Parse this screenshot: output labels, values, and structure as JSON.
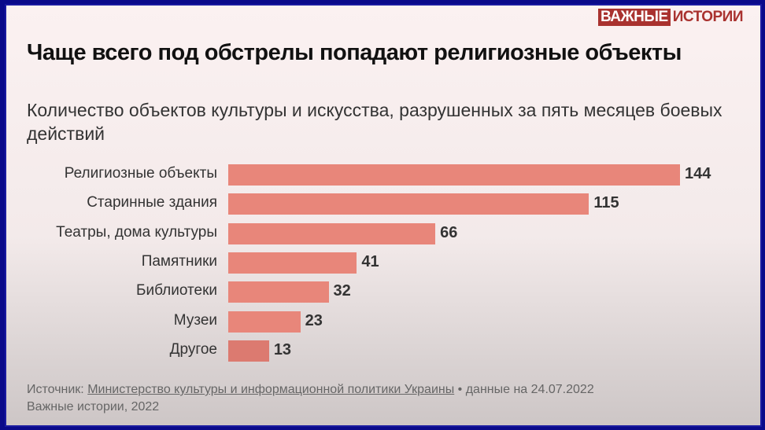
{
  "logo": {
    "part1": "ВАЖНЫЕ",
    "part2": "ИСТОРИИ"
  },
  "colors": {
    "bar": "#e8867a",
    "logo": "#a9322f",
    "frame": "#0a0a8a"
  },
  "chart_data": {
    "type": "bar",
    "orientation": "horizontal",
    "title": "Чаще всего под обстрелы попадают религиозные объекты",
    "subtitle": "Количество объектов культуры и искусства, разрушенных за пять месяцев боевых действий",
    "categories": [
      "Религиозные объекты",
      "Старинные здания",
      "Театры, дома культуры",
      "Памятники",
      "Библиотеки",
      "Музеи",
      "Другое"
    ],
    "values": [
      144,
      115,
      66,
      41,
      32,
      23,
      13
    ],
    "data_labels": [
      "144",
      "115",
      "66",
      "41",
      "32",
      "23",
      "13"
    ],
    "xlim": [
      0,
      144
    ],
    "grid": false
  },
  "source": {
    "prefix": "Источник: ",
    "link": "Министерство культуры и информационной политики Украины",
    "suffix": " • данные на 24.07.2022",
    "credit": "Важные истории, 2022"
  }
}
